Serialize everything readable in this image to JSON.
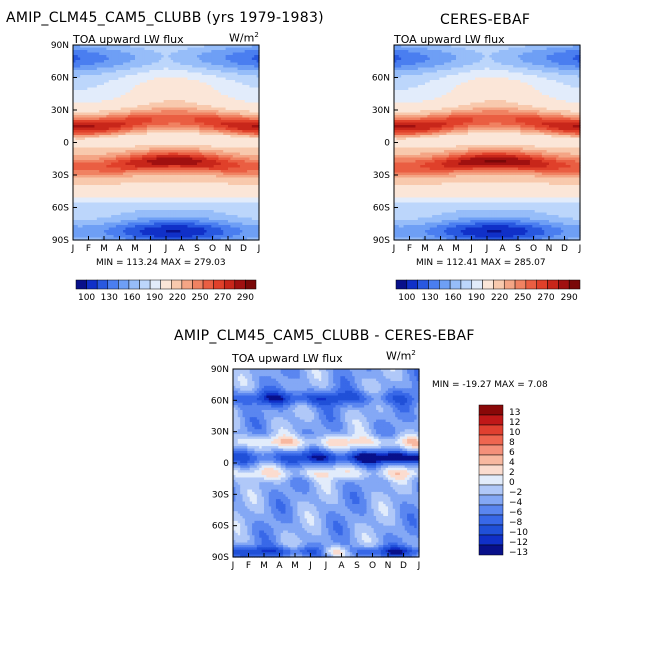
{
  "colors": {
    "palette": [
      "#08108a",
      "#1030c8",
      "#2858e0",
      "#4a7ef0",
      "#6e9ff5",
      "#96bdf9",
      "#bcd6fb",
      "#e2ecfb",
      "#fbe6d8",
      "#f8c9ad",
      "#f4a585",
      "#f08262",
      "#ea5e42",
      "#e0402a",
      "#c8261a",
      "#a01010",
      "#7a0808"
    ]
  },
  "panels": [
    {
      "id": "model",
      "title": "AMIP_CLM45_CAM5_CLUBB (yrs 1979-1983)",
      "subtitle": "TOA upward LW flux",
      "units": "W/m",
      "units_sup": "2",
      "minmax": "MIN = 113.24  MAX = 279.03"
    },
    {
      "id": "obs",
      "title": "CERES-EBAF",
      "subtitle": "TOA upward LW flux",
      "units": "W/m",
      "units_sup": "2",
      "minmax": "MIN = 112.41  MAX = 285.07"
    },
    {
      "id": "diff",
      "title": "AMIP_CLM45_CAM5_CLUBB - CERES-EBAF",
      "subtitle": "TOA upward LW flux",
      "units": "W/m",
      "units_sup": "2",
      "minmax": "MIN = -19.27  MAX =    7.08"
    }
  ],
  "chart_data": [
    {
      "type": "heatmap",
      "title": "AMIP_CLM45_CAM5_CLUBB (yrs 1979-1983)",
      "field": "TOA upward LW flux (W/m2)",
      "x": [
        "J",
        "F",
        "M",
        "A",
        "M",
        "J",
        "J",
        "A",
        "S",
        "O",
        "N",
        "D",
        "J"
      ],
      "y": [
        "90N",
        "60N",
        "30N",
        "0",
        "30S",
        "60S",
        "90S"
      ],
      "ylim": [
        -90,
        90
      ],
      "min": 113.24,
      "max": 279.03,
      "levels": [
        100,
        130,
        160,
        190,
        220,
        250,
        270,
        290
      ],
      "colorbar_labels": [
        "100",
        "130",
        "160",
        "190",
        "220",
        "250",
        "270",
        "290"
      ]
    },
    {
      "type": "heatmap",
      "title": "CERES-EBAF",
      "field": "TOA upward LW flux (W/m2)",
      "x": [
        "J",
        "F",
        "M",
        "A",
        "M",
        "J",
        "J",
        "A",
        "S",
        "O",
        "N",
        "D",
        "J"
      ],
      "y": [
        "90N",
        "60N",
        "30N",
        "0",
        "30S",
        "60S",
        "90S"
      ],
      "ylim": [
        -90,
        90
      ],
      "min": 112.41,
      "max": 285.07,
      "levels": [
        100,
        130,
        160,
        190,
        220,
        250,
        270,
        290
      ],
      "colorbar_labels": [
        "100",
        "130",
        "160",
        "190",
        "220",
        "250",
        "270",
        "290"
      ]
    },
    {
      "type": "heatmap",
      "title": "AMIP_CLM45_CAM5_CLUBB - CERES-EBAF",
      "field": "TOA upward LW flux difference (W/m2)",
      "x": [
        "J",
        "F",
        "M",
        "A",
        "M",
        "J",
        "J",
        "A",
        "S",
        "O",
        "N",
        "D",
        "J"
      ],
      "y": [
        "90N",
        "60N",
        "30N",
        "0",
        "30S",
        "60S",
        "90S"
      ],
      "ylim": [
        -90,
        90
      ],
      "min": -19.27,
      "max": 7.08,
      "levels": [
        -13,
        -12,
        -10,
        -8,
        -6,
        -4,
        -2,
        0,
        2,
        4,
        6,
        8,
        10,
        12,
        13
      ],
      "colorbar_labels": [
        "13",
        "12",
        "10",
        "8",
        "6",
        "4",
        "2",
        "0",
        "−2",
        "−4",
        "−6",
        "−8",
        "−10",
        "−12",
        "−13"
      ]
    }
  ]
}
